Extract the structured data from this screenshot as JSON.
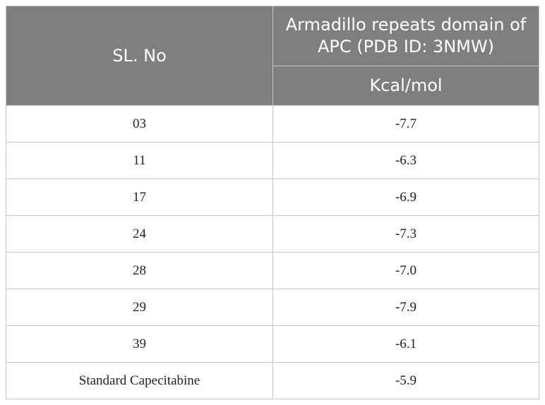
{
  "table": {
    "headers": {
      "sl_no": "SL. No",
      "domain": "Armadillo repeats domain of APC (PDB ID: 3NMW)",
      "unit": "Kcal/mol"
    },
    "rows": [
      {
        "sl": "03",
        "value": "-7.7"
      },
      {
        "sl": "11",
        "value": "-6.3"
      },
      {
        "sl": "17",
        "value": "-6.9"
      },
      {
        "sl": "24",
        "value": "-7.3"
      },
      {
        "sl": "28",
        "value": "-7.0"
      },
      {
        "sl": "29",
        "value": "-7.9"
      },
      {
        "sl": "39",
        "value": "-6.1"
      },
      {
        "sl": "Standard Capecitabine",
        "value": "-5.9"
      }
    ]
  },
  "colors": {
    "header_background": "#7f7f7f",
    "header_text": "#ffffff",
    "border": "#c8c8c8"
  }
}
